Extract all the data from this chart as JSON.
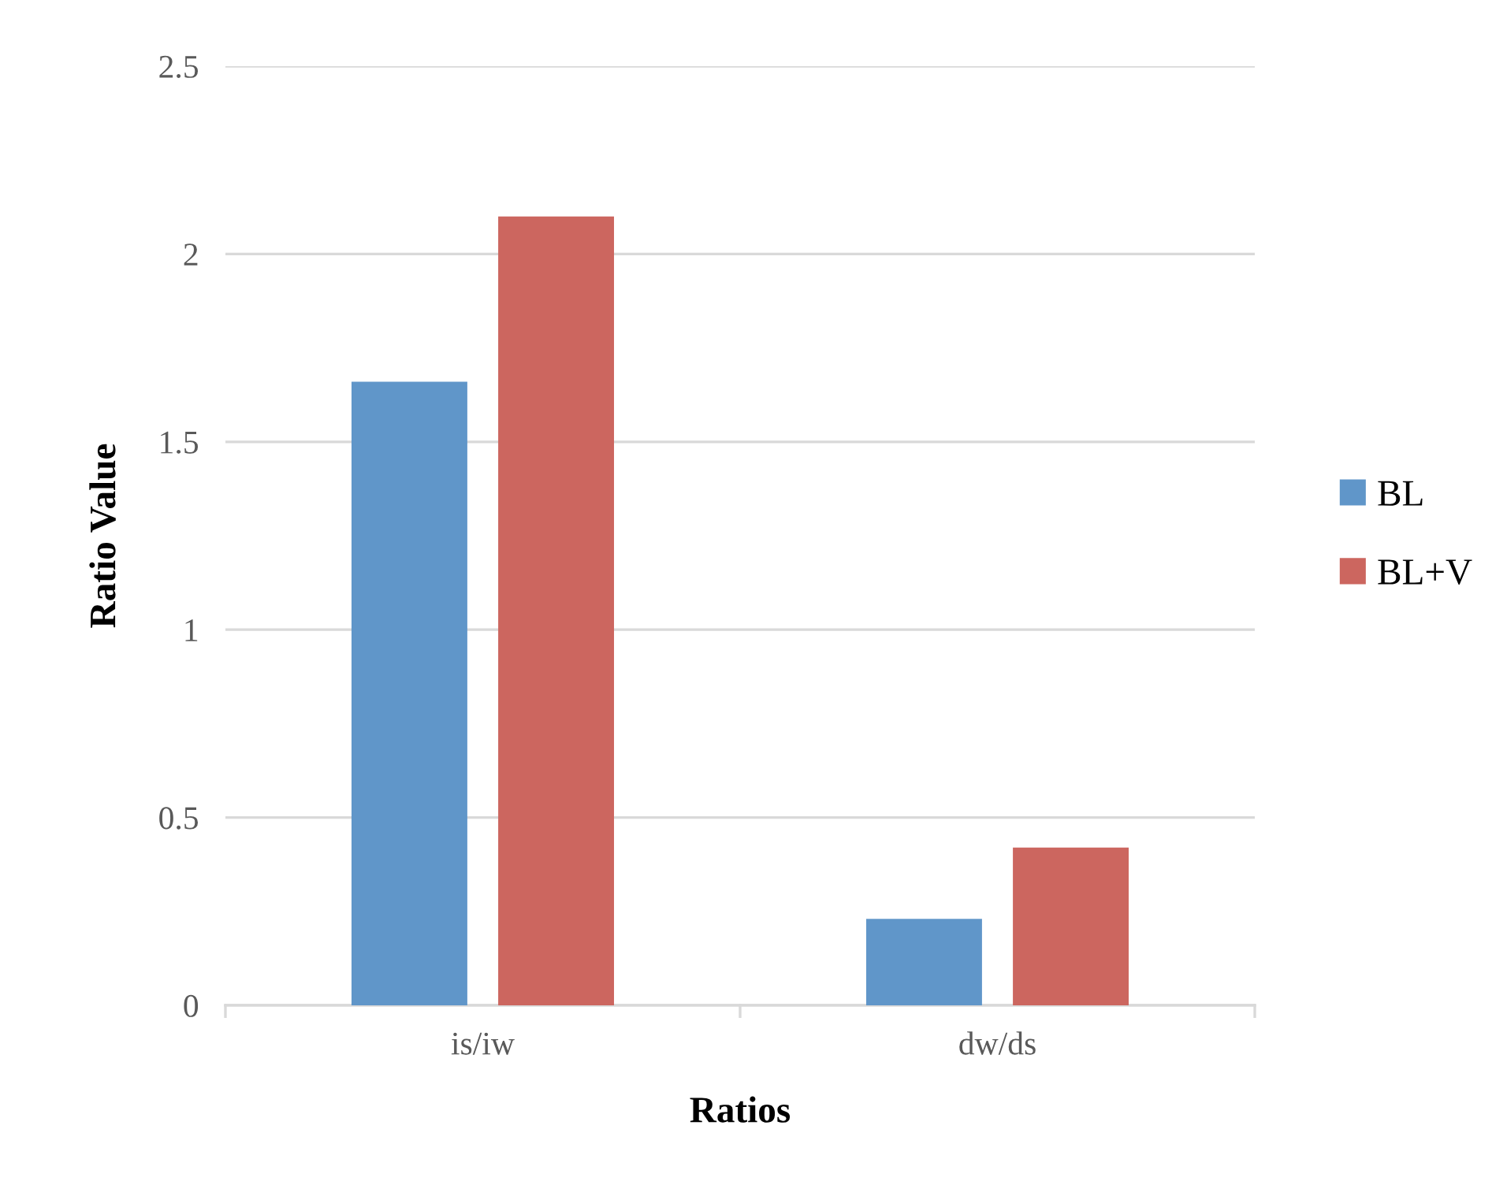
{
  "chart_data": {
    "type": "bar",
    "xlabel": "Ratios",
    "ylabel": "Ratio Value",
    "categories": [
      "is/iw",
      "dw/ds"
    ],
    "series": [
      {
        "name": "BL",
        "color": "#6096c9",
        "values": [
          1.66,
          0.23
        ]
      },
      {
        "name": "BL+V",
        "color": "#cc665f",
        "values": [
          2.1,
          0.42
        ]
      }
    ],
    "ylim": [
      0,
      2.5
    ],
    "yticks": [
      0,
      0.5,
      1,
      1.5,
      2,
      2.5
    ],
    "grid": "y",
    "legend": "right"
  }
}
